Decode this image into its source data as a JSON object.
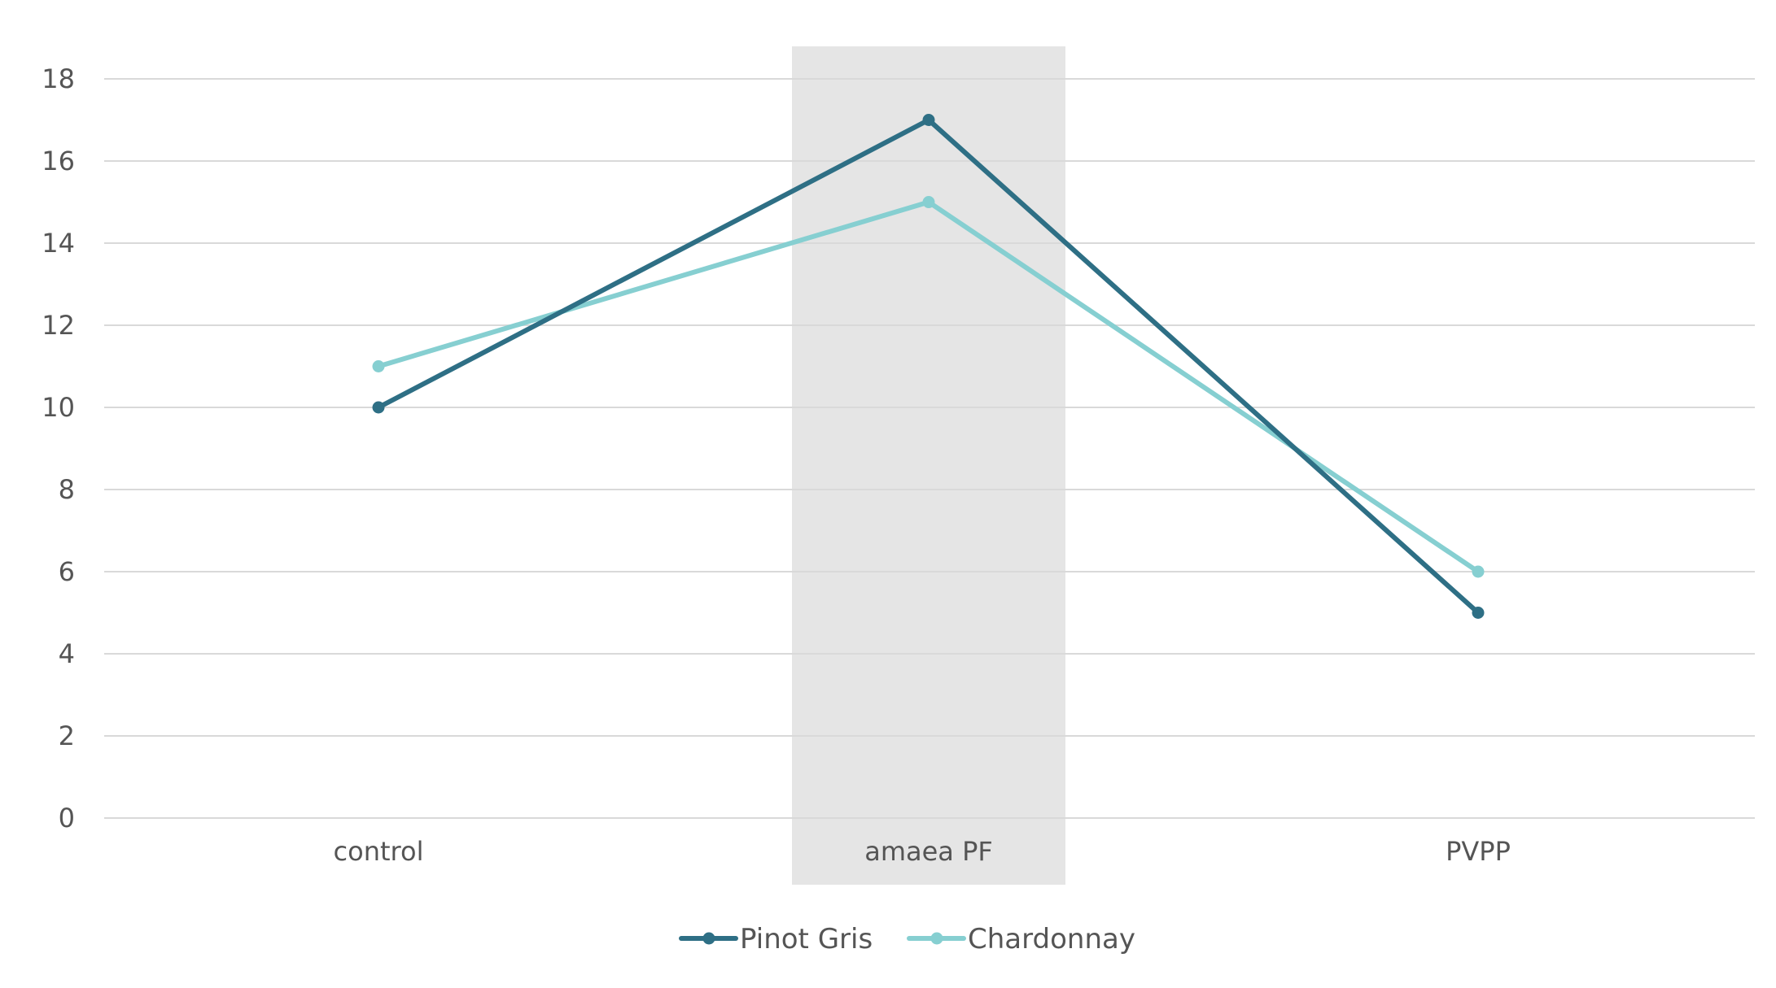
{
  "chart_data": {
    "type": "line",
    "categories": [
      "control",
      "amaea PF",
      "PVPP"
    ],
    "highlight_category": "amaea PF",
    "highlight_color": "#e5e5e5",
    "series": [
      {
        "name": "Pinot Gris",
        "values": [
          10,
          17,
          5
        ],
        "color": "#2e6f85"
      },
      {
        "name": "Chardonnay",
        "values": [
          11,
          15,
          6
        ],
        "color": "#86cfd1"
      }
    ],
    "ylim": [
      0,
      18
    ],
    "y_ticks": [
      "0",
      "2",
      "4",
      "6",
      "8",
      "10",
      "12",
      "14",
      "16",
      "18"
    ],
    "grid": true,
    "gridline_color": "#d9d9d9",
    "text_color": "#555555",
    "legend_position": "bottom-center"
  }
}
